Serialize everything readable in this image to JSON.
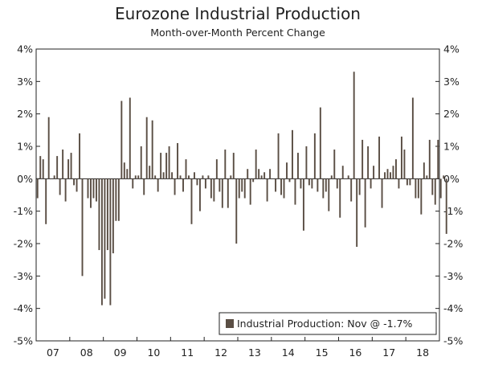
{
  "chart_data": {
    "type": "bar",
    "title": "Eurozone Industrial Production",
    "subtitle": "Month-over-Month Percent Change",
    "xlabel": "",
    "ylabel": "",
    "ylim": [
      -5,
      4
    ],
    "y_ticks": [
      4,
      3,
      2,
      1,
      0,
      -1,
      -2,
      -3,
      -4,
      -5
    ],
    "y_tick_labels": [
      "4%",
      "3%",
      "2%",
      "1%",
      "0%",
      "-1%",
      "-2%",
      "-3%",
      "-4%",
      "-5%"
    ],
    "x_tick_labels": [
      "07",
      "08",
      "09",
      "10",
      "11",
      "12",
      "13",
      "14",
      "15",
      "16",
      "17",
      "18"
    ],
    "series": [
      {
        "name": "Industrial Production: Nov @ -1.7%",
        "color": "#5a4e44",
        "start": "2007-01",
        "values": [
          -0.6,
          0.7,
          0.6,
          -1.4,
          1.9,
          0.0,
          0.1,
          0.7,
          -0.5,
          0.9,
          -0.7,
          0.6,
          0.8,
          -0.2,
          -0.4,
          1.4,
          -3.0,
          0.0,
          -0.6,
          -0.9,
          -0.6,
          -0.7,
          -2.2,
          -3.9,
          -3.7,
          -2.2,
          -3.9,
          -2.3,
          -1.3,
          -1.3,
          2.4,
          0.5,
          0.3,
          2.5,
          -0.3,
          0.1,
          0.1,
          1.0,
          -0.5,
          1.9,
          0.4,
          1.8,
          0.1,
          -0.4,
          0.8,
          0.2,
          0.8,
          1.0,
          0.2,
          -0.5,
          1.1,
          0.1,
          -0.4,
          0.6,
          0.1,
          -1.4,
          0.2,
          -0.2,
          -1.0,
          0.1,
          -0.3,
          0.1,
          -0.6,
          -0.7,
          0.6,
          -0.4,
          -0.9,
          0.9,
          -0.9,
          0.1,
          0.8,
          -2.0,
          -0.6,
          -0.4,
          -0.6,
          0.3,
          -0.8,
          -0.1,
          0.9,
          0.3,
          0.1,
          0.2,
          -0.7,
          0.3,
          0.0,
          -0.4,
          1.4,
          -0.5,
          -0.6,
          0.5,
          -0.1,
          1.5,
          -0.8,
          0.8,
          -0.3,
          -1.6,
          1.0,
          -0.2,
          -0.3,
          1.4,
          -0.4,
          2.2,
          -0.6,
          -0.4,
          -1.0,
          0.1,
          0.9,
          -0.3,
          -1.2,
          0.4,
          0.0,
          0.1,
          -0.7,
          3.3,
          -2.1,
          -0.5,
          1.2,
          -1.5,
          1.0,
          -0.3,
          0.4,
          0.0,
          1.3,
          -0.9,
          0.2,
          0.3,
          0.2,
          0.4,
          0.6,
          -0.3,
          1.3,
          0.9,
          -0.2,
          -0.2,
          2.5,
          -0.6,
          -0.6,
          -1.1,
          0.5,
          0.1,
          1.2,
          -0.5,
          -0.8,
          1.2,
          -0.6,
          0.1,
          -1.7
        ]
      }
    ],
    "legend": {
      "label": "Industrial Production: Nov @ -1.7%",
      "placement": "bottom-right"
    },
    "grid": false
  }
}
